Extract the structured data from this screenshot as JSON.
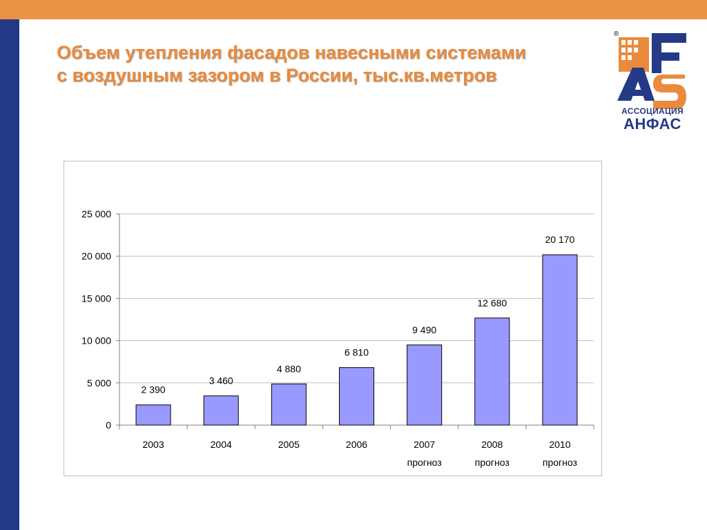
{
  "slide": {
    "title": "Объем утепления фасадов навесными системами с воздушным зазором в России, тыс.кв.метров",
    "colors": {
      "top_bar": "#ea9346",
      "left_bar": "#253a86",
      "title": "#ea8b3c",
      "bar_fill": "#9999ff"
    }
  },
  "logo": {
    "icon": "anfas-logo-icon",
    "registered_mark": "®",
    "caption_small": "АССОЦИАЦИЯ",
    "caption_big": "АНФАС"
  },
  "chart_data": {
    "type": "bar",
    "categories": [
      "2003",
      "2004",
      "2005",
      "2006",
      "2007",
      "2008",
      "2010"
    ],
    "category_sublabels": [
      "",
      "",
      "",
      "",
      "прогноз",
      "прогноз",
      "прогноз"
    ],
    "values": [
      2390,
      3460,
      4880,
      6810,
      9490,
      12680,
      20170
    ],
    "data_labels": [
      "2 390",
      "3 460",
      "4 880",
      "6 810",
      "9 490",
      "12 680",
      "20 170"
    ],
    "ylim": [
      0,
      25000
    ],
    "y_ticks": [
      0,
      5000,
      10000,
      15000,
      20000,
      25000
    ],
    "y_tick_labels": [
      "0",
      "5 000",
      "10 000",
      "15 000",
      "20 000",
      "25 000"
    ],
    "grid": true,
    "legend": "none",
    "bar_color": "#9999ff"
  }
}
